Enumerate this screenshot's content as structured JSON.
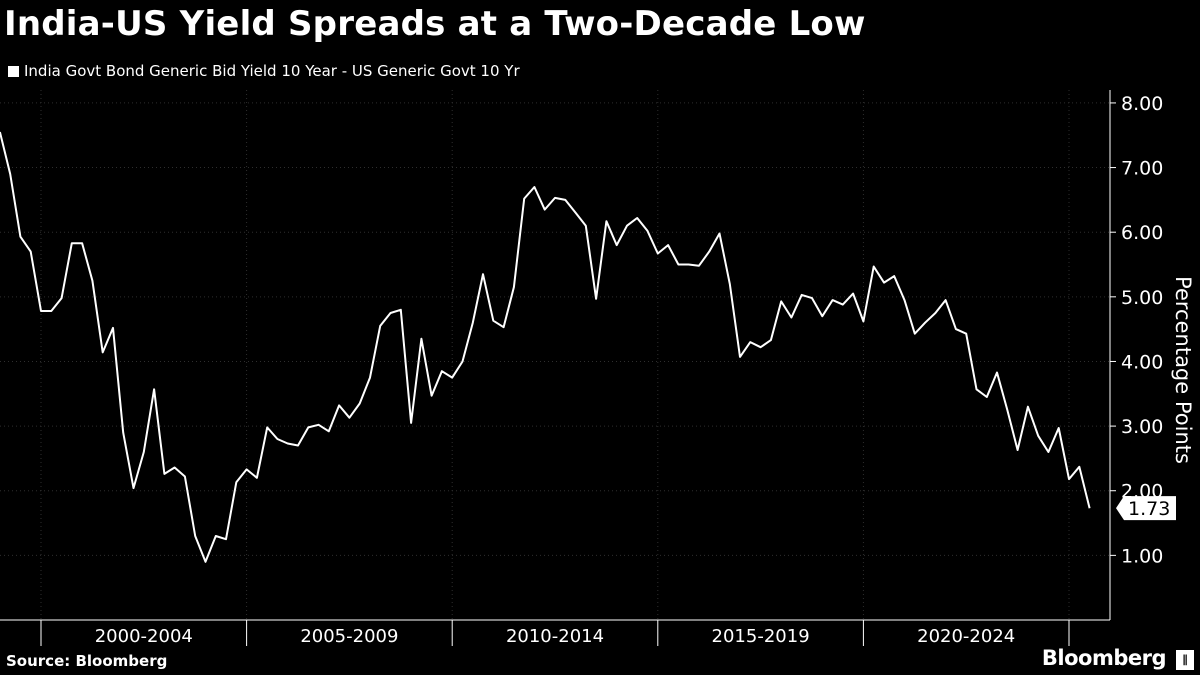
{
  "title": "India-US Yield Spreads at a Two-Decade Low",
  "legend_label": "India Govt Bond Generic Bid Yield 10 Year - US Generic Govt 10 Yr",
  "source": "Source: Bloomberg",
  "brand": "Bloomberg",
  "brand_mark": "∥",
  "chart_data": {
    "type": "line",
    "title": "India-US Yield Spreads at a Two-Decade Low",
    "ylabel": "Percentage Points",
    "ylim": [
      0,
      8.2
    ],
    "yticks": [
      "1.00",
      "2.00",
      "3.00",
      "4.00",
      "5.00",
      "6.00",
      "7.00",
      "8.00"
    ],
    "ytick_values": [
      1,
      2,
      3,
      4,
      5,
      6,
      7,
      8
    ],
    "x_range": [
      1999.0,
      2025.8
    ],
    "x_boundaries": [
      2000,
      2005,
      2010,
      2015,
      2020,
      2025
    ],
    "x_period_labels": [
      {
        "label": "2000-2004",
        "from": 2000,
        "to": 2005
      },
      {
        "label": "2005-2009",
        "from": 2005,
        "to": 2010
      },
      {
        "label": "2010-2014",
        "from": 2010,
        "to": 2015
      },
      {
        "label": "2015-2019",
        "from": 2015,
        "to": 2020
      },
      {
        "label": "2020-2024",
        "from": 2020,
        "to": 2025
      }
    ],
    "last_value_label": "1.73",
    "grid": true,
    "legend_position": "top-left",
    "series": [
      {
        "name": "India Govt Bond Generic Bid Yield 10 Year - US Generic Govt 10 Yr",
        "color": "#ffffff",
        "x": [
          1999.0,
          1999.25,
          1999.5,
          1999.75,
          2000.0,
          2000.25,
          2000.5,
          2000.75,
          2001.0,
          2001.25,
          2001.5,
          2001.75,
          2002.0,
          2002.25,
          2002.5,
          2002.75,
          2003.0,
          2003.25,
          2003.5,
          2003.75,
          2004.0,
          2004.25,
          2004.5,
          2004.75,
          2005.0,
          2005.25,
          2005.5,
          2005.75,
          2006.0,
          2006.25,
          2006.5,
          2006.75,
          2007.0,
          2007.25,
          2007.5,
          2007.75,
          2008.0,
          2008.25,
          2008.5,
          2008.75,
          2009.0,
          2009.25,
          2009.5,
          2009.75,
          2010.0,
          2010.25,
          2010.5,
          2010.75,
          2011.0,
          2011.25,
          2011.5,
          2011.75,
          2012.0,
          2012.25,
          2012.5,
          2012.75,
          2013.0,
          2013.25,
          2013.5,
          2013.75,
          2014.0,
          2014.25,
          2014.5,
          2014.75,
          2015.0,
          2015.25,
          2015.5,
          2015.75,
          2016.0,
          2016.25,
          2016.5,
          2016.75,
          2017.0,
          2017.25,
          2017.5,
          2017.75,
          2018.0,
          2018.25,
          2018.5,
          2018.75,
          2019.0,
          2019.25,
          2019.5,
          2019.75,
          2020.0,
          2020.25,
          2020.5,
          2020.75,
          2021.0,
          2021.25,
          2021.5,
          2021.75,
          2022.0,
          2022.25,
          2022.5,
          2022.75,
          2023.0,
          2023.25,
          2023.5,
          2023.75,
          2024.0,
          2024.25,
          2024.5,
          2024.75,
          2025.0,
          2025.25,
          2025.5
        ],
        "y": [
          7.55,
          6.9,
          5.93,
          5.7,
          4.78,
          4.78,
          4.98,
          5.83,
          5.83,
          5.25,
          4.14,
          4.52,
          2.9,
          2.04,
          2.6,
          3.57,
          2.26,
          2.36,
          2.22,
          1.3,
          0.9,
          1.3,
          1.25,
          2.13,
          2.33,
          2.2,
          2.98,
          2.8,
          2.73,
          2.7,
          2.98,
          3.02,
          2.92,
          3.32,
          3.13,
          3.35,
          3.75,
          4.55,
          4.75,
          4.8,
          3.05,
          4.35,
          3.47,
          3.85,
          3.75,
          4.0,
          4.6,
          5.35,
          4.63,
          4.53,
          5.15,
          6.52,
          6.7,
          6.35,
          6.53,
          6.5,
          6.3,
          6.1,
          4.97,
          6.17,
          5.8,
          6.1,
          6.22,
          6.02,
          5.67,
          5.8,
          5.5,
          5.5,
          5.48,
          5.7,
          5.98,
          5.2,
          4.07,
          4.3,
          4.22,
          4.33,
          4.93,
          4.68,
          5.03,
          4.98,
          4.7,
          4.95,
          4.88,
          5.05,
          4.62,
          5.47,
          5.22,
          5.32,
          4.95,
          4.43,
          4.6,
          4.75,
          4.95,
          4.5,
          4.43,
          3.57,
          3.45,
          3.83,
          3.25,
          2.63,
          3.3,
          2.85,
          2.6,
          2.97,
          2.18,
          2.37,
          1.73
        ]
      }
    ]
  }
}
